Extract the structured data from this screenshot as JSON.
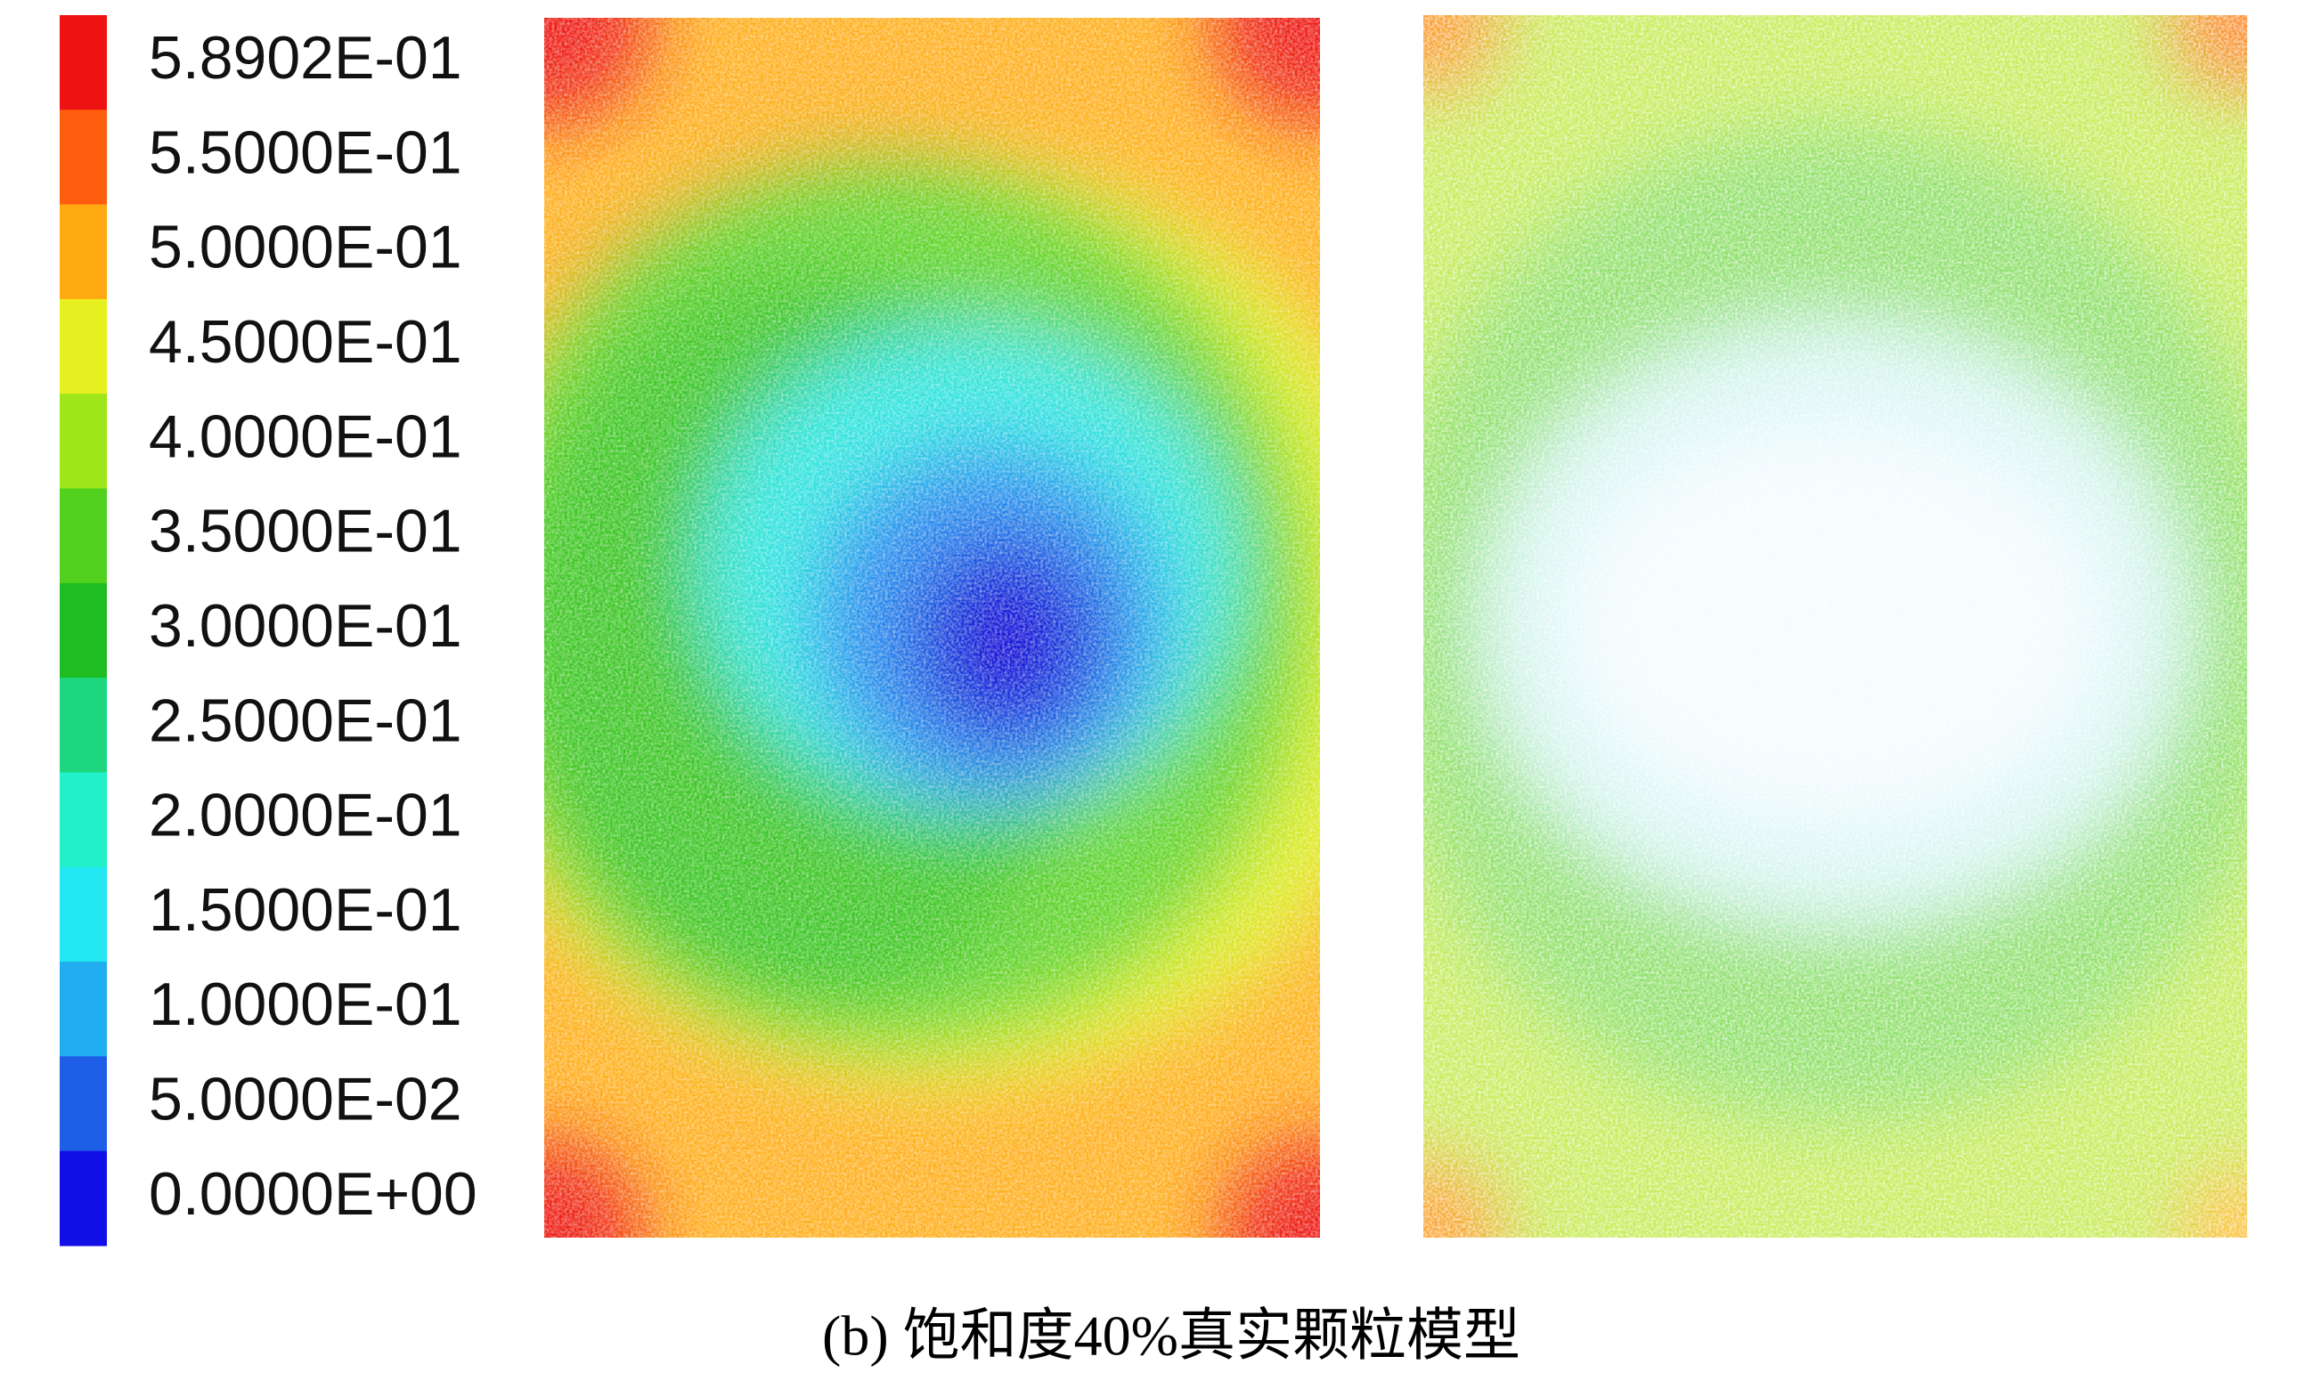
{
  "legend": {
    "labels": [
      "5.8902E-01",
      "5.5000E-01",
      "5.0000E-01",
      "4.5000E-01",
      "4.0000E-01",
      "3.5000E-01",
      "3.0000E-01",
      "2.5000E-01",
      "2.0000E-01",
      "1.5000E-01",
      "1.0000E-01",
      "5.0000E-02",
      "0.0000E+00"
    ],
    "colors": [
      "#ee1212",
      "#ff5e0e",
      "#ffaa12",
      "#e6f020",
      "#9ee61a",
      "#52d21e",
      "#1ebe22",
      "#1ed67e",
      "#22f0c8",
      "#22e6f2",
      "#20aef0",
      "#1e5ee6",
      "#1010e6"
    ]
  },
  "caption": "(b) 饱和度40%真实颗粒模型"
}
